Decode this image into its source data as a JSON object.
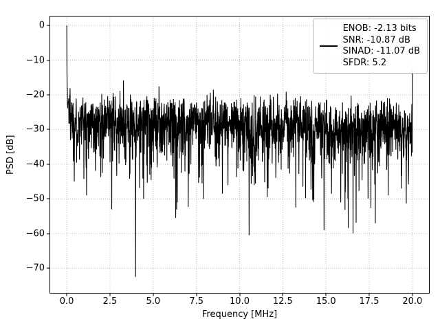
{
  "chart_data": {
    "type": "line",
    "title": "",
    "xlabel": "Frequency [MHz]",
    "ylabel": "PSD [dB]",
    "xlim": [
      -1,
      21
    ],
    "ylim": [
      -77.3,
      2.8
    ],
    "x_ticks": [
      0,
      2.5,
      5,
      7.5,
      10,
      12.5,
      15,
      17.5,
      20
    ],
    "x_tick_labels": [
      "0.0",
      "2.5",
      "5.0",
      "7.5",
      "10.0",
      "12.5",
      "15.0",
      "17.5",
      "20.0"
    ],
    "y_ticks": [
      0,
      -10,
      -20,
      -30,
      -40,
      -50,
      -60,
      -70
    ],
    "y_tick_labels": [
      "0",
      "−10",
      "−20",
      "−30",
      "−40",
      "−50",
      "−60",
      "−70"
    ],
    "grid": true,
    "colors": {
      "line": "#000000",
      "grid": "#b0b0b0",
      "spine": "#000000",
      "background": "#ffffff"
    },
    "legend": {
      "position": "upper right",
      "lines": [
        "ENOB: -2.13 bits",
        "SNR: -10.87 dB",
        "SINAD: -11.07 dB",
        "SFDR: 5.2"
      ]
    },
    "metrics": {
      "enob_bits": -2.13,
      "snr_db": -10.87,
      "sinad_db": -11.07,
      "sfdr": 5.2
    },
    "series": [
      {
        "name": "psd",
        "color": "#000000",
        "description": "Dense noise spectrum: DC peak reaching 0 dB at 0 MHz, noise floor band roughly -20 to -45 dB sloping slightly downward with frequency, frequent nulls to -50 dB, deepest null -72.5 dB near 4 MHz, edge spike to -13 dB at 20 MHz",
        "generator": {
          "seed": 1337,
          "n_points": 1800,
          "floor_start_db": -26.0,
          "floor_end_db": -28.0,
          "clip_min_db": -60,
          "clip_max_db": -14,
          "dc_boost_width_mhz": 0.5,
          "dc_boost_db": 6,
          "final_max_db": -12
        },
        "key_points": [
          {
            "x": 0.0,
            "y": 0.0
          },
          {
            "x": 0.011,
            "y": -13.0
          },
          {
            "x": 0.03,
            "y": -18.0
          },
          {
            "x": 20.0,
            "y": -13.0
          }
        ],
        "notable_minima": [
          {
            "x": 1.15,
            "y": -49.0
          },
          {
            "x": 2.6,
            "y": -53.0
          },
          {
            "x": 3.98,
            "y": -72.5
          },
          {
            "x": 4.45,
            "y": -50.0
          },
          {
            "x": 6.3,
            "y": -55.5
          },
          {
            "x": 7.9,
            "y": -50.0
          },
          {
            "x": 9.0,
            "y": -48.5
          },
          {
            "x": 10.55,
            "y": -60.5
          },
          {
            "x": 11.6,
            "y": -49.5
          },
          {
            "x": 13.25,
            "y": -52.5
          },
          {
            "x": 14.3,
            "y": -50.0
          },
          {
            "x": 15.85,
            "y": -51.0
          },
          {
            "x": 17.85,
            "y": -57.0
          },
          {
            "x": 18.6,
            "y": -49.0
          },
          {
            "x": 19.35,
            "y": -47.0
          }
        ]
      }
    ]
  }
}
